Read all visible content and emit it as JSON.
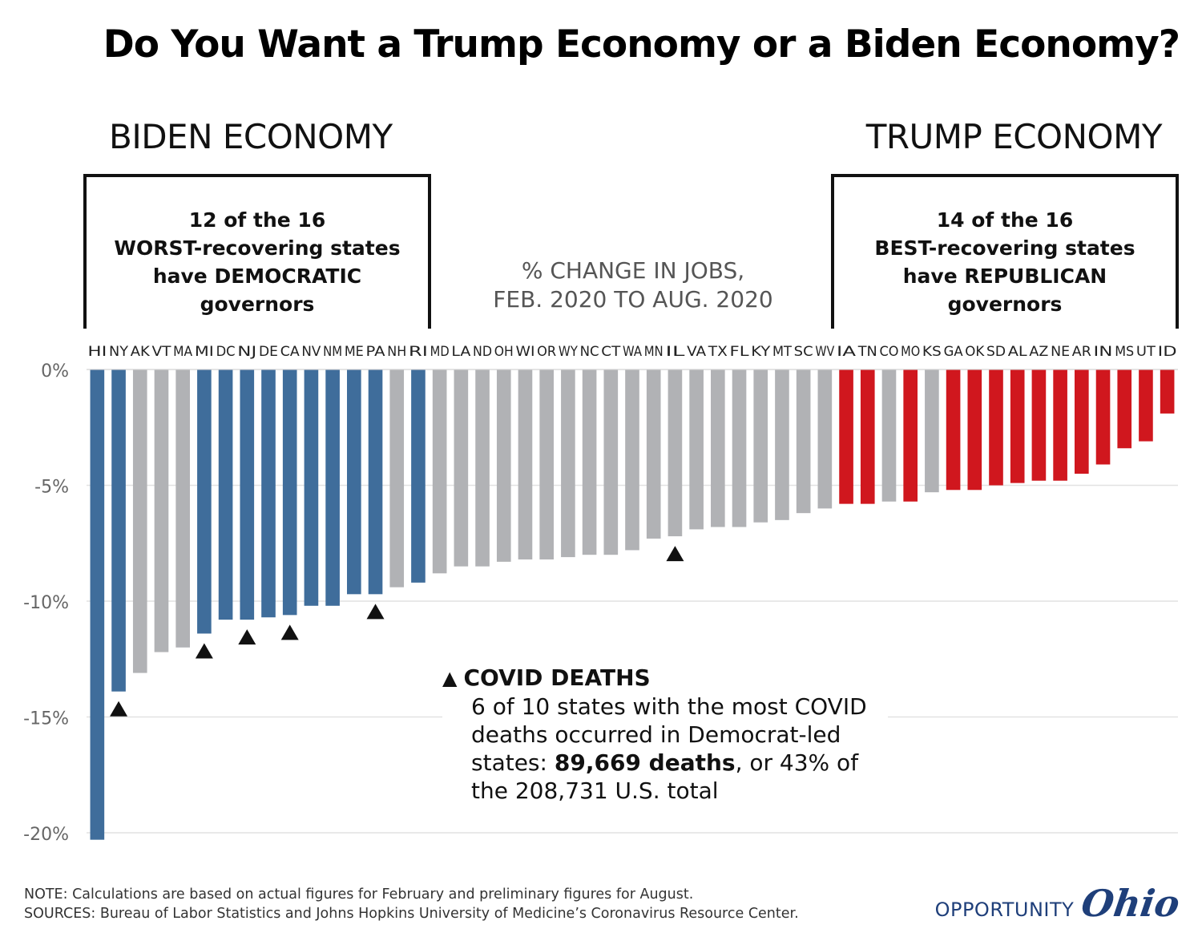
{
  "title": "Do You Want a Trump Economy or a Biden Economy?",
  "left_label": "BIDEN ECONOMY",
  "right_label": "TRUMP ECONOMY",
  "left_box": {
    "l1": "12 of the 16",
    "l2": "WORST-recovering states",
    "l3": "have DEMOCRATIC",
    "l4": "governors"
  },
  "right_box": {
    "l1": "14 of the 16",
    "l2": "BEST-recovering states",
    "l3": "have REPUBLICAN",
    "l4": "governors"
  },
  "legend": {
    "heading": "COVID DEATHS",
    "text_a": "6 of 10 states with the most COVID deaths occurred in Democrat-led states: ",
    "text_bold": "89,669 deaths",
    "text_b": ", or 43% of the 208,731 U.S. total"
  },
  "notes": {
    "note": "NOTE: Calculations are based on actual figures for February and preliminary figures for August.",
    "sources": "SOURCES: Bureau of Labor Statistics and Johns Hopkins University of Medicine’s Coronavirus Resource Center."
  },
  "logo": {
    "word": "OPPORTUNITY",
    "script": "Ohio"
  },
  "colors": {
    "democratic": "#3f6d9b",
    "republican": "#d0171e",
    "neutral": "#b1b2b5"
  },
  "chart_data": {
    "type": "bar",
    "title": "% CHANGE IN JOBS,\nFEB. 2020 TO AUG. 2020",
    "xlabel": "",
    "ylabel": "",
    "ylim": [
      -20,
      0
    ],
    "yticks": [
      0,
      -5,
      -10,
      -15,
      -20
    ],
    "ytick_labels": [
      "0%",
      "-5%",
      "-10%",
      "-15%",
      "-20%"
    ],
    "grid": true,
    "legend_position": "center",
    "categories": [
      "HI",
      "NY",
      "AK",
      "VT",
      "MA",
      "MI",
      "DC",
      "NJ",
      "DE",
      "CA",
      "NV",
      "NM",
      "ME",
      "PA",
      "NH",
      "RI",
      "MD",
      "LA",
      "ND",
      "OH",
      "WI",
      "OR",
      "WY",
      "NC",
      "CT",
      "WA",
      "MN",
      "IL",
      "VA",
      "TX",
      "FL",
      "KY",
      "MT",
      "SC",
      "WV",
      "IA",
      "TN",
      "CO",
      "MO",
      "KS",
      "GA",
      "OK",
      "SD",
      "AL",
      "AZ",
      "NE",
      "AR",
      "IN",
      "MS",
      "UT",
      "ID"
    ],
    "values": [
      -20.3,
      -13.9,
      -13.1,
      -12.2,
      -12.0,
      -11.4,
      -10.8,
      -10.8,
      -10.7,
      -10.6,
      -10.2,
      -10.2,
      -9.7,
      -9.7,
      -9.4,
      -9.2,
      -8.8,
      -8.5,
      -8.5,
      -8.3,
      -8.2,
      -8.2,
      -8.1,
      -8.0,
      -8.0,
      -7.8,
      -7.3,
      -7.2,
      -6.9,
      -6.8,
      -6.8,
      -6.6,
      -6.5,
      -6.2,
      -6.0,
      -5.8,
      -5.8,
      -5.7,
      -5.7,
      -5.3,
      -5.2,
      -5.2,
      -5.0,
      -4.9,
      -4.8,
      -4.8,
      -4.5,
      -4.1,
      -3.4,
      -3.1,
      -1.9
    ],
    "series": [
      {
        "name": "Democratic governors",
        "categories": [
          "HI",
          "NY",
          "MI",
          "DC",
          "NJ",
          "DE",
          "CA",
          "NV",
          "NM",
          "ME",
          "PA",
          "RI"
        ]
      },
      {
        "name": "Republican governors",
        "categories": [
          "IA",
          "TN",
          "MO",
          "GA",
          "OK",
          "SD",
          "AL",
          "AZ",
          "NE",
          "AR",
          "IN",
          "MS",
          "UT",
          "ID"
        ]
      }
    ],
    "covid_death_markers": [
      "NY",
      "MI",
      "NJ",
      "CA",
      "PA",
      "IL"
    ]
  }
}
